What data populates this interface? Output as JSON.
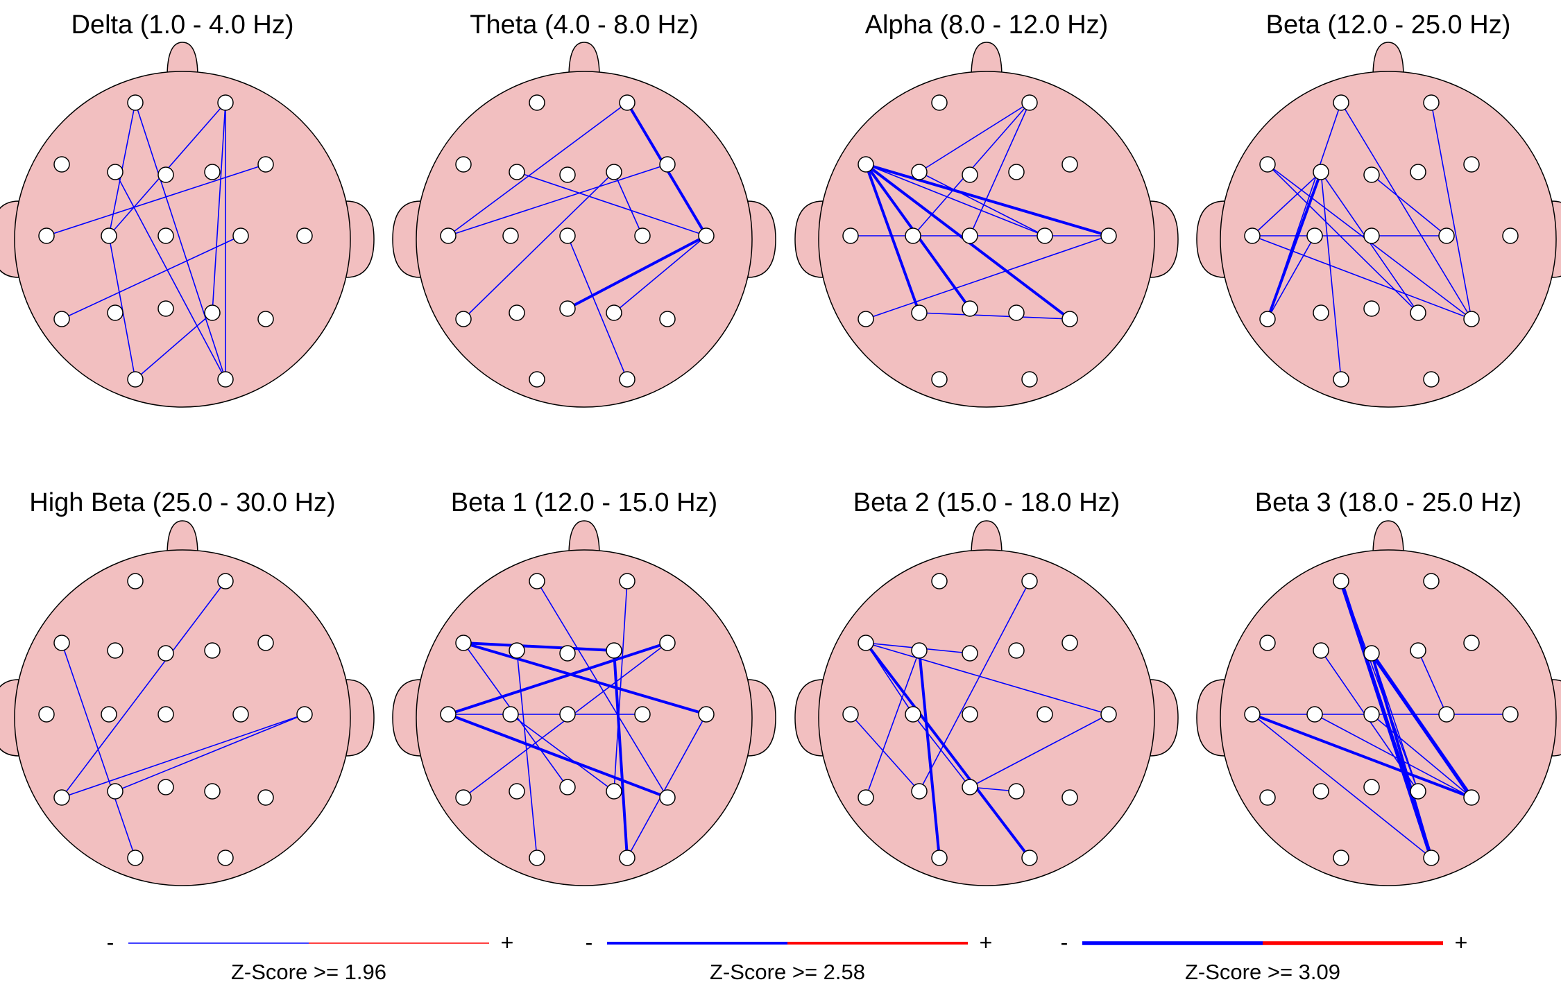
{
  "bands": [
    {
      "title": "Delta (1.0 - 4.0 Hz)",
      "connections": [
        {
          "from": "Fp1",
          "to": "C3",
          "level": 1
        },
        {
          "from": "Fp1",
          "to": "O2",
          "level": 1
        },
        {
          "from": "Fp2",
          "to": "C3",
          "level": 1
        },
        {
          "from": "Fp2",
          "to": "P4",
          "level": 1
        },
        {
          "from": "Fp2",
          "to": "O2",
          "level": 1
        },
        {
          "from": "F3",
          "to": "O2",
          "level": 1
        },
        {
          "from": "F8",
          "to": "T3",
          "level": 1
        },
        {
          "from": "C3",
          "to": "O1",
          "level": 1
        },
        {
          "from": "C4",
          "to": "T5",
          "level": 1
        },
        {
          "from": "P4",
          "to": "O1",
          "level": 1
        }
      ]
    },
    {
      "title": "Theta (4.0 - 8.0 Hz)",
      "connections": [
        {
          "from": "Fp2",
          "to": "T4",
          "level": 2
        },
        {
          "from": "Fp2",
          "to": "T3",
          "level": 1
        },
        {
          "from": "F3",
          "to": "T4",
          "level": 1
        },
        {
          "from": "F8",
          "to": "T3",
          "level": 1
        },
        {
          "from": "F4",
          "to": "T5",
          "level": 1
        },
        {
          "from": "F4",
          "to": "C4",
          "level": 1
        },
        {
          "from": "T4",
          "to": "Pz",
          "level": 2
        },
        {
          "from": "T4",
          "to": "P4",
          "level": 1
        },
        {
          "from": "Cz",
          "to": "O2",
          "level": 1
        }
      ]
    },
    {
      "title": "Alpha (8.0 - 12.0 Hz)",
      "connections": [
        {
          "from": "F7",
          "to": "T4",
          "level": 2
        },
        {
          "from": "F7",
          "to": "T6",
          "level": 2
        },
        {
          "from": "F7",
          "to": "P3",
          "level": 2
        },
        {
          "from": "F7",
          "to": "Pz",
          "level": 2
        },
        {
          "from": "F7",
          "to": "C4",
          "level": 1
        },
        {
          "from": "Fp2",
          "to": "C3",
          "level": 1
        },
        {
          "from": "Fp2",
          "to": "Cz",
          "level": 1
        },
        {
          "from": "Fp2",
          "to": "F3",
          "level": 1
        },
        {
          "from": "T3",
          "to": "T4",
          "level": 1
        },
        {
          "from": "T5",
          "to": "T4",
          "level": 1
        },
        {
          "from": "P3",
          "to": "T6",
          "level": 1
        },
        {
          "from": "F3",
          "to": "C4",
          "level": 1
        }
      ]
    },
    {
      "title": "Beta (12.0 - 25.0 Hz)",
      "connections": [
        {
          "from": "Fp1",
          "to": "T5",
          "level": 1
        },
        {
          "from": "Fp1",
          "to": "T6",
          "level": 1
        },
        {
          "from": "Fp2",
          "to": "T6",
          "level": 1
        },
        {
          "from": "F7",
          "to": "T6",
          "level": 1
        },
        {
          "from": "F7",
          "to": "P4",
          "level": 1
        },
        {
          "from": "F3",
          "to": "T5",
          "level": 2
        },
        {
          "from": "F3",
          "to": "O1",
          "level": 1
        },
        {
          "from": "F3",
          "to": "P4",
          "level": 1
        },
        {
          "from": "T3",
          "to": "C4",
          "level": 1
        },
        {
          "from": "T3",
          "to": "F3",
          "level": 1
        },
        {
          "from": "T3",
          "to": "T6",
          "level": 1
        },
        {
          "from": "C3",
          "to": "T5",
          "level": 1
        },
        {
          "from": "Fz",
          "to": "C4",
          "level": 1
        }
      ]
    },
    {
      "title": "High Beta (25.0 - 30.0 Hz)",
      "connections": [
        {
          "from": "F7",
          "to": "O1",
          "level": 1
        },
        {
          "from": "Fp2",
          "to": "T5",
          "level": 1
        },
        {
          "from": "T5",
          "to": "T4",
          "level": 1
        },
        {
          "from": "P3",
          "to": "T4",
          "level": 1
        }
      ]
    },
    {
      "title": "Beta 1 (12.0 - 15.0 Hz)",
      "connections": [
        {
          "from": "F7",
          "to": "F4",
          "level": 2
        },
        {
          "from": "F7",
          "to": "T4",
          "level": 2
        },
        {
          "from": "T3",
          "to": "F8",
          "level": 2
        },
        {
          "from": "T3",
          "to": "T6",
          "level": 2
        },
        {
          "from": "F4",
          "to": "O2",
          "level": 2
        },
        {
          "from": "Fp1",
          "to": "T6",
          "level": 1
        },
        {
          "from": "Fp2",
          "to": "P4",
          "level": 1
        },
        {
          "from": "F3",
          "to": "O1",
          "level": 1
        },
        {
          "from": "F7",
          "to": "Pz",
          "level": 1
        },
        {
          "from": "T5",
          "to": "F8",
          "level": 1
        },
        {
          "from": "T4",
          "to": "O2",
          "level": 1
        },
        {
          "from": "T3",
          "to": "C4",
          "level": 1
        },
        {
          "from": "C3",
          "to": "P4",
          "level": 1
        }
      ]
    },
    {
      "title": "Beta 2 (15.0 - 18.0 Hz)",
      "connections": [
        {
          "from": "F7",
          "to": "O2",
          "level": 2
        },
        {
          "from": "F3",
          "to": "O1",
          "level": 2
        },
        {
          "from": "F7",
          "to": "T4",
          "level": 1
        },
        {
          "from": "F7",
          "to": "Fz",
          "level": 1
        },
        {
          "from": "F7",
          "to": "C3",
          "level": 1
        },
        {
          "from": "F3",
          "to": "T5",
          "level": 1
        },
        {
          "from": "Fp2",
          "to": "P3",
          "level": 1
        },
        {
          "from": "Pz",
          "to": "T4",
          "level": 1
        },
        {
          "from": "Pz",
          "to": "C3",
          "level": 1
        },
        {
          "from": "Pz",
          "to": "P4",
          "level": 1
        },
        {
          "from": "T3",
          "to": "P3",
          "level": 1
        }
      ]
    },
    {
      "title": "Beta 3 (18.0 - 25.0 Hz)",
      "connections": [
        {
          "from": "Fp1",
          "to": "O2",
          "level": 3
        },
        {
          "from": "Fz",
          "to": "T6",
          "level": 3
        },
        {
          "from": "T3",
          "to": "T6",
          "level": 2
        },
        {
          "from": "Fz",
          "to": "O2",
          "level": 2
        },
        {
          "from": "T3",
          "to": "T4",
          "level": 1
        },
        {
          "from": "T3",
          "to": "O2",
          "level": 1
        },
        {
          "from": "Fp1",
          "to": "P4",
          "level": 1
        },
        {
          "from": "F3",
          "to": "P4",
          "level": 1
        },
        {
          "from": "C3",
          "to": "T6",
          "level": 1
        },
        {
          "from": "F4",
          "to": "C4",
          "level": 1
        },
        {
          "from": "Cz",
          "to": "T6",
          "level": 1
        },
        {
          "from": "Fz",
          "to": "P4",
          "level": 1
        }
      ]
    }
  ],
  "legend": [
    {
      "minus": "-",
      "plus": "+",
      "label": "Z-Score >= 1.96",
      "level": 1
    },
    {
      "minus": "-",
      "plus": "+",
      "label": "Z-Score >= 2.58",
      "level": 2
    },
    {
      "minus": "-",
      "plus": "+",
      "label": "Z-Score >= 3.09",
      "level": 3
    }
  ],
  "colors": {
    "head_fill": "#f2bfc0",
    "head_stroke": "#000000",
    "electrode_fill": "#ffffff",
    "negative": "#0000ff",
    "positive": "#ff0000"
  }
}
